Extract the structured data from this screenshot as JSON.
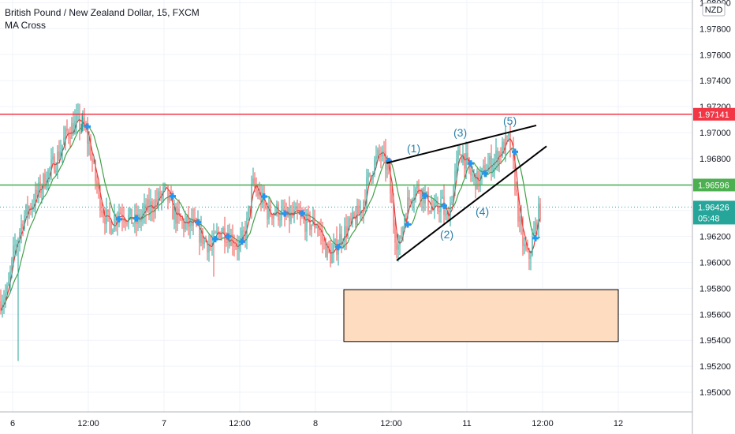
{
  "header": {
    "title": "British Pound / New Zealand Dollar, 15, FXCM",
    "indicator": "MA Cross"
  },
  "currency_badge": "NZD",
  "colors": {
    "up_candle": "#26a69a",
    "down_candle": "#ef5350",
    "ma_fast": "#e53935",
    "ma_slow": "#43a047",
    "resistance": "#f23645",
    "support": "#4caf50",
    "current": "#26a69a",
    "cross_marker": "#2196f3",
    "wave_label": "#2a7fa8",
    "demand_zone_fill": "#fddcbf"
  },
  "chart_data": {
    "type": "candlestick",
    "y_axis": {
      "range": [
        1.949,
        1.9805
      ],
      "tick_labels": [
        "1.98000",
        "1.97800",
        "1.97600",
        "1.97400",
        "1.97200",
        "1.97000",
        "1.96800",
        "1.96600",
        "1.96400",
        "1.96200",
        "1.96000",
        "1.95800",
        "1.95600",
        "1.95400",
        "1.95200",
        "1.95000"
      ]
    },
    "x_axis": {
      "tick_labels": [
        "6",
        "12:00",
        "7",
        "12:00",
        "8",
        "12:00",
        "11",
        "12:00",
        "12"
      ]
    },
    "price_lines": [
      {
        "name": "resistance",
        "price": 1.97141,
        "label": "1.97141"
      },
      {
        "name": "support",
        "price": 1.96596,
        "label": "1.96596"
      },
      {
        "name": "current",
        "price": 1.96426,
        "label": "1.96426",
        "countdown": "05:48"
      }
    ],
    "wave_labels": [
      "(1)",
      "(2)",
      "(3)",
      "(4)",
      "(5)"
    ],
    "demand_zone": {
      "top": 1.9579,
      "bottom": 1.9539
    }
  }
}
